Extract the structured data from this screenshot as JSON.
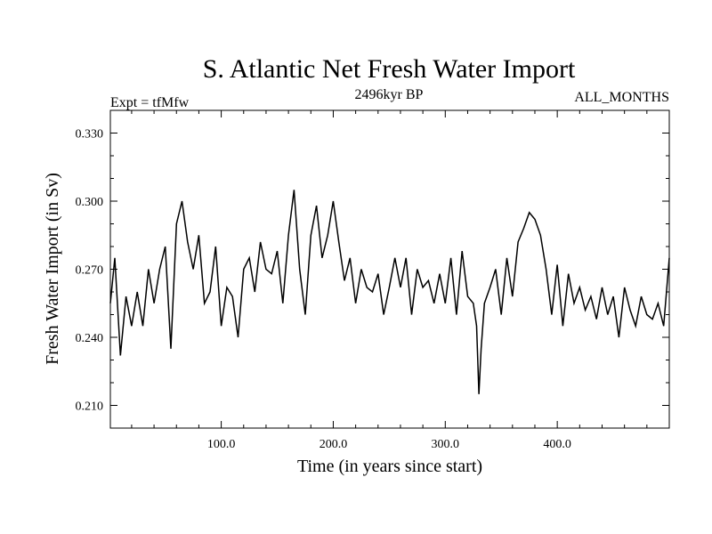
{
  "chart_data": {
    "type": "line",
    "title": "S. Atlantic Net Fresh Water Import",
    "subtitle_center": "2496kyr BP",
    "subtitle_left": "Expt = tfMfw",
    "subtitle_right": "ALL_MONTHS",
    "xlabel": "Time (in years since start)",
    "ylabel": "Fresh Water Import (in Sv)",
    "xlim": [
      1,
      500
    ],
    "ylim": [
      0.2,
      0.34
    ],
    "xticks": [
      100,
      200,
      300,
      400
    ],
    "xtick_labels": [
      "100.0",
      "200.0",
      "300.0",
      "400.0"
    ],
    "yticks": [
      0.21,
      0.24,
      0.27,
      0.3,
      0.33
    ],
    "ytick_labels": [
      "0.210",
      "0.240",
      "0.270",
      "0.300",
      "0.330"
    ],
    "series": [
      {
        "name": "fresh water import",
        "x": [
          1,
          5,
          10,
          15,
          20,
          25,
          30,
          35,
          40,
          45,
          50,
          55,
          60,
          65,
          70,
          75,
          80,
          85,
          90,
          95,
          100,
          105,
          110,
          115,
          120,
          125,
          130,
          135,
          140,
          145,
          150,
          155,
          160,
          165,
          170,
          175,
          180,
          185,
          190,
          195,
          200,
          205,
          210,
          215,
          220,
          225,
          230,
          235,
          240,
          245,
          250,
          255,
          260,
          265,
          270,
          275,
          280,
          285,
          290,
          295,
          300,
          305,
          310,
          315,
          320,
          325,
          328,
          330,
          332,
          335,
          340,
          345,
          350,
          355,
          360,
          365,
          370,
          375,
          380,
          385,
          390,
          395,
          400,
          405,
          410,
          415,
          420,
          425,
          430,
          435,
          440,
          445,
          450,
          455,
          460,
          465,
          470,
          475,
          480,
          485,
          490,
          495,
          500
        ],
        "values": [
          0.255,
          0.275,
          0.232,
          0.258,
          0.245,
          0.26,
          0.245,
          0.27,
          0.255,
          0.27,
          0.28,
          0.235,
          0.29,
          0.3,
          0.282,
          0.27,
          0.285,
          0.255,
          0.26,
          0.28,
          0.245,
          0.262,
          0.258,
          0.24,
          0.27,
          0.275,
          0.26,
          0.282,
          0.27,
          0.268,
          0.278,
          0.255,
          0.285,
          0.305,
          0.27,
          0.25,
          0.285,
          0.298,
          0.275,
          0.285,
          0.3,
          0.282,
          0.265,
          0.275,
          0.255,
          0.27,
          0.262,
          0.26,
          0.268,
          0.25,
          0.262,
          0.275,
          0.262,
          0.275,
          0.25,
          0.27,
          0.262,
          0.265,
          0.255,
          0.268,
          0.255,
          0.275,
          0.25,
          0.278,
          0.258,
          0.255,
          0.245,
          0.215,
          0.235,
          0.255,
          0.262,
          0.27,
          0.25,
          0.275,
          0.258,
          0.282,
          0.288,
          0.295,
          0.292,
          0.285,
          0.27,
          0.25,
          0.272,
          0.245,
          0.268,
          0.255,
          0.262,
          0.252,
          0.258,
          0.248,
          0.262,
          0.25,
          0.258,
          0.24,
          0.262,
          0.252,
          0.245,
          0.258,
          0.25,
          0.248,
          0.255,
          0.245,
          0.275
        ]
      }
    ]
  }
}
